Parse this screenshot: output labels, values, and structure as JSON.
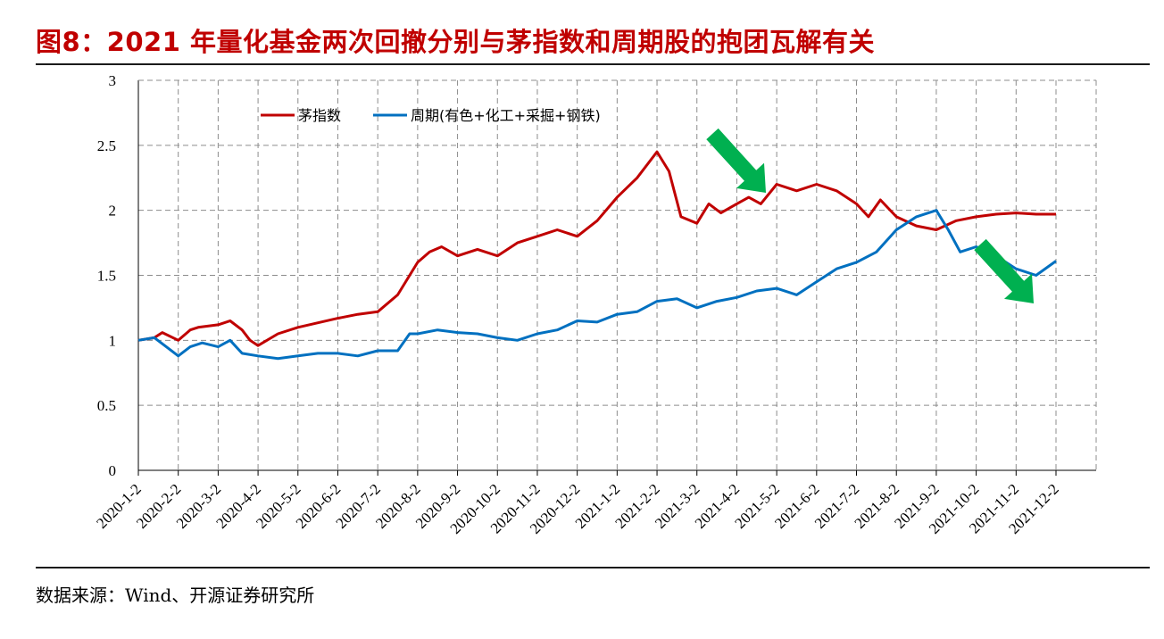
{
  "figure": {
    "title": "图8：2021 年量化基金两次回撤分别与茅指数和周期股的抱团瓦解有关",
    "source": "数据来源：Wind、开源证券研究所"
  },
  "chart_data": {
    "type": "line",
    "xlabel": "",
    "ylabel": "",
    "ylim": [
      0,
      3
    ],
    "yticks": [
      "0",
      "0.5",
      "1",
      "1.5",
      "2",
      "2.5",
      "3"
    ],
    "categories": [
      "2020-1-2",
      "2020-2-2",
      "2020-3-2",
      "2020-4-2",
      "2020-5-2",
      "2020-6-2",
      "2020-7-2",
      "2020-8-2",
      "2020-9-2",
      "2020-10-2",
      "2020-11-2",
      "2020-12-2",
      "2021-1-2",
      "2021-2-2",
      "2021-3-2",
      "2021-4-2",
      "2021-5-2",
      "2021-6-2",
      "2021-7-2",
      "2021-8-2",
      "2021-9-2",
      "2021-10-2",
      "2021-11-2",
      "2021-12-2"
    ],
    "grid": true,
    "legend_position": "top-left",
    "series": [
      {
        "name": "茅指数",
        "color": "#c00000",
        "x": [
          0,
          0.4,
          0.6,
          1.0,
          1.3,
          1.5,
          2.0,
          2.3,
          2.6,
          2.8,
          3.0,
          3.5,
          4.0,
          5.0,
          5.5,
          6.0,
          6.5,
          7.0,
          7.3,
          7.6,
          8.0,
          8.5,
          9.0,
          9.5,
          10.0,
          10.5,
          11.0,
          11.5,
          12.0,
          12.5,
          13.0,
          13.3,
          13.6,
          14.0,
          14.3,
          14.6,
          15.0,
          15.3,
          15.6,
          16.0,
          16.5,
          17.0,
          17.5,
          18.0,
          18.3,
          18.6,
          19.0,
          19.5,
          20.0,
          20.5,
          21.0,
          21.5,
          22.0,
          22.5,
          23.0
        ],
        "values": [
          1.0,
          1.02,
          1.06,
          1.0,
          1.08,
          1.1,
          1.12,
          1.15,
          1.08,
          1.0,
          0.96,
          1.05,
          1.1,
          1.17,
          1.2,
          1.22,
          1.35,
          1.6,
          1.68,
          1.72,
          1.65,
          1.7,
          1.65,
          1.75,
          1.8,
          1.85,
          1.8,
          1.92,
          2.1,
          2.25,
          2.45,
          2.3,
          1.95,
          1.9,
          2.05,
          1.98,
          2.05,
          2.1,
          2.05,
          2.2,
          2.15,
          2.2,
          2.15,
          2.05,
          1.95,
          2.08,
          1.95,
          1.88,
          1.85,
          1.92,
          1.95,
          1.97,
          1.98,
          1.97,
          1.97
        ]
      },
      {
        "name": "周期(有色+化工+采掘+钢铁)",
        "color": "#0070c0",
        "x": [
          0,
          0.4,
          0.7,
          1.0,
          1.3,
          1.6,
          2.0,
          2.3,
          2.6,
          3.0,
          3.5,
          4.0,
          4.5,
          5.0,
          5.5,
          6.0,
          6.5,
          6.8,
          7.0,
          7.5,
          8.0,
          8.5,
          9.0,
          9.5,
          10.0,
          10.5,
          11.0,
          11.5,
          12.0,
          12.5,
          13.0,
          13.5,
          14.0,
          14.5,
          15.0,
          15.5,
          16.0,
          16.5,
          17.0,
          17.5,
          18.0,
          18.5,
          19.0,
          19.5,
          20.0,
          20.3,
          20.6,
          21.0,
          21.5,
          22.0,
          22.5,
          23.0
        ],
        "values": [
          1.0,
          1.02,
          0.95,
          0.88,
          0.95,
          0.98,
          0.95,
          1.0,
          0.9,
          0.88,
          0.86,
          0.88,
          0.9,
          0.9,
          0.88,
          0.92,
          0.92,
          1.05,
          1.05,
          1.08,
          1.06,
          1.05,
          1.02,
          1.0,
          1.05,
          1.08,
          1.15,
          1.14,
          1.2,
          1.22,
          1.3,
          1.32,
          1.25,
          1.3,
          1.33,
          1.38,
          1.4,
          1.35,
          1.45,
          1.55,
          1.6,
          1.68,
          1.85,
          1.95,
          2.0,
          1.85,
          1.68,
          1.72,
          1.65,
          1.55,
          1.5,
          1.61
        ]
      }
    ],
    "annotations": [
      "green-arrow-down",
      "green-arrow-down"
    ]
  }
}
